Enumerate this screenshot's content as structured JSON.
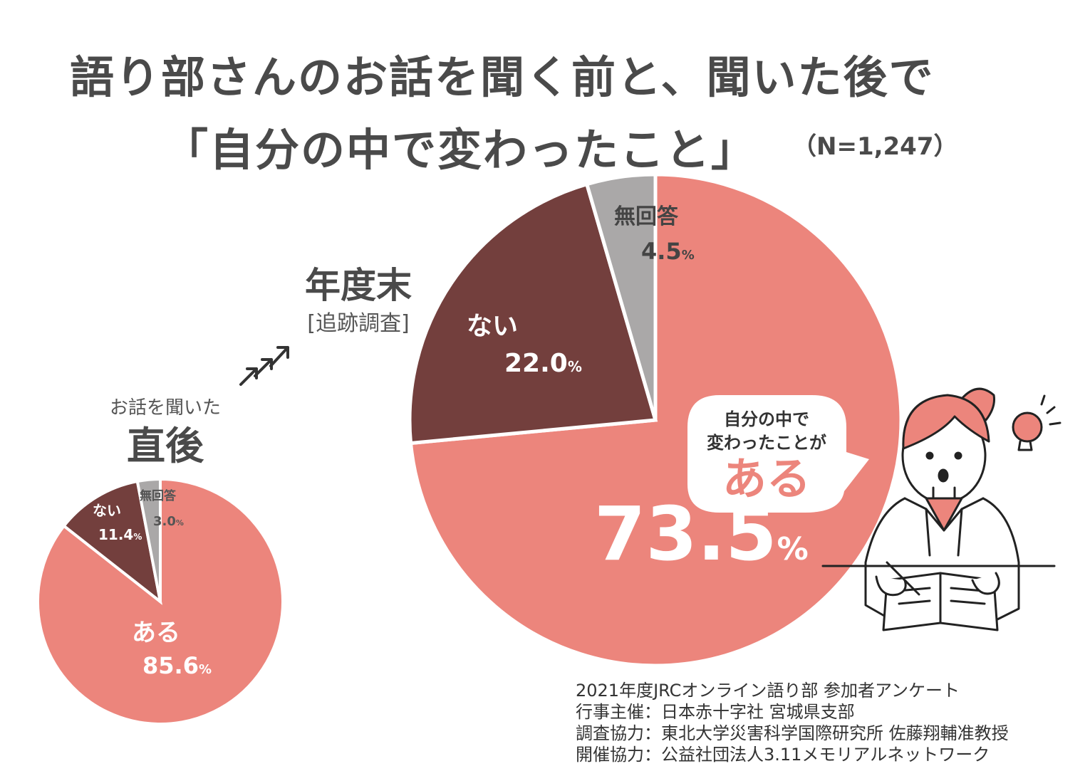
{
  "title": {
    "line1": "語り部さんのお話を聞く前と、聞いた後で",
    "line2": "「自分の中で変わったこと」",
    "sample": "（N=1,247）"
  },
  "arrow_text": "↗↗↗",
  "speech_bubble": {
    "line1": "自分の中で",
    "line2": "変わったことが",
    "emphasis": "ある"
  },
  "colors": {
    "aru": "#ec857c",
    "nai": "#733f3d",
    "mukaitou": "#aaa8a8",
    "text_dark": "#4a4a4a"
  },
  "chart_data": [
    {
      "type": "pie",
      "id": "small",
      "subtitle": "お話を聞いた",
      "title": "直後",
      "start": "top",
      "direction": "clockwise",
      "slices": [
        {
          "label": "ある",
          "value": 85.6,
          "num": "85.6",
          "unit": "%",
          "color": "#ec857c"
        },
        {
          "label": "ない",
          "value": 11.4,
          "num": "11.4",
          "unit": "%",
          "color": "#733f3d"
        },
        {
          "label": "無回答",
          "value": 3.0,
          "num": "3.0",
          "unit": "%",
          "color": "#aaa8a8"
        }
      ]
    },
    {
      "type": "pie",
      "id": "large",
      "title": "年度末",
      "subtitle": "[追跡調査]",
      "start": "top",
      "direction": "clockwise",
      "slices": [
        {
          "label": "ある",
          "value": 73.5,
          "num": "73.5",
          "unit": "%",
          "color": "#ec857c"
        },
        {
          "label": "ない",
          "value": 22.0,
          "num": "22.0",
          "unit": "%",
          "color": "#733f3d"
        },
        {
          "label": "無回答",
          "value": 4.5,
          "num": "4.5",
          "unit": "%",
          "color": "#aaa8a8"
        }
      ]
    }
  ],
  "credits": [
    "2021年度JRCオンライン語り部 参加者アンケート",
    "行事主催：日本赤十字社 宮城県支部",
    "調査協力：東北大学災害科学国際研究所 佐藤翔輔准教授",
    "開催協力：公益社団法人3.11メモリアルネットワーク"
  ]
}
